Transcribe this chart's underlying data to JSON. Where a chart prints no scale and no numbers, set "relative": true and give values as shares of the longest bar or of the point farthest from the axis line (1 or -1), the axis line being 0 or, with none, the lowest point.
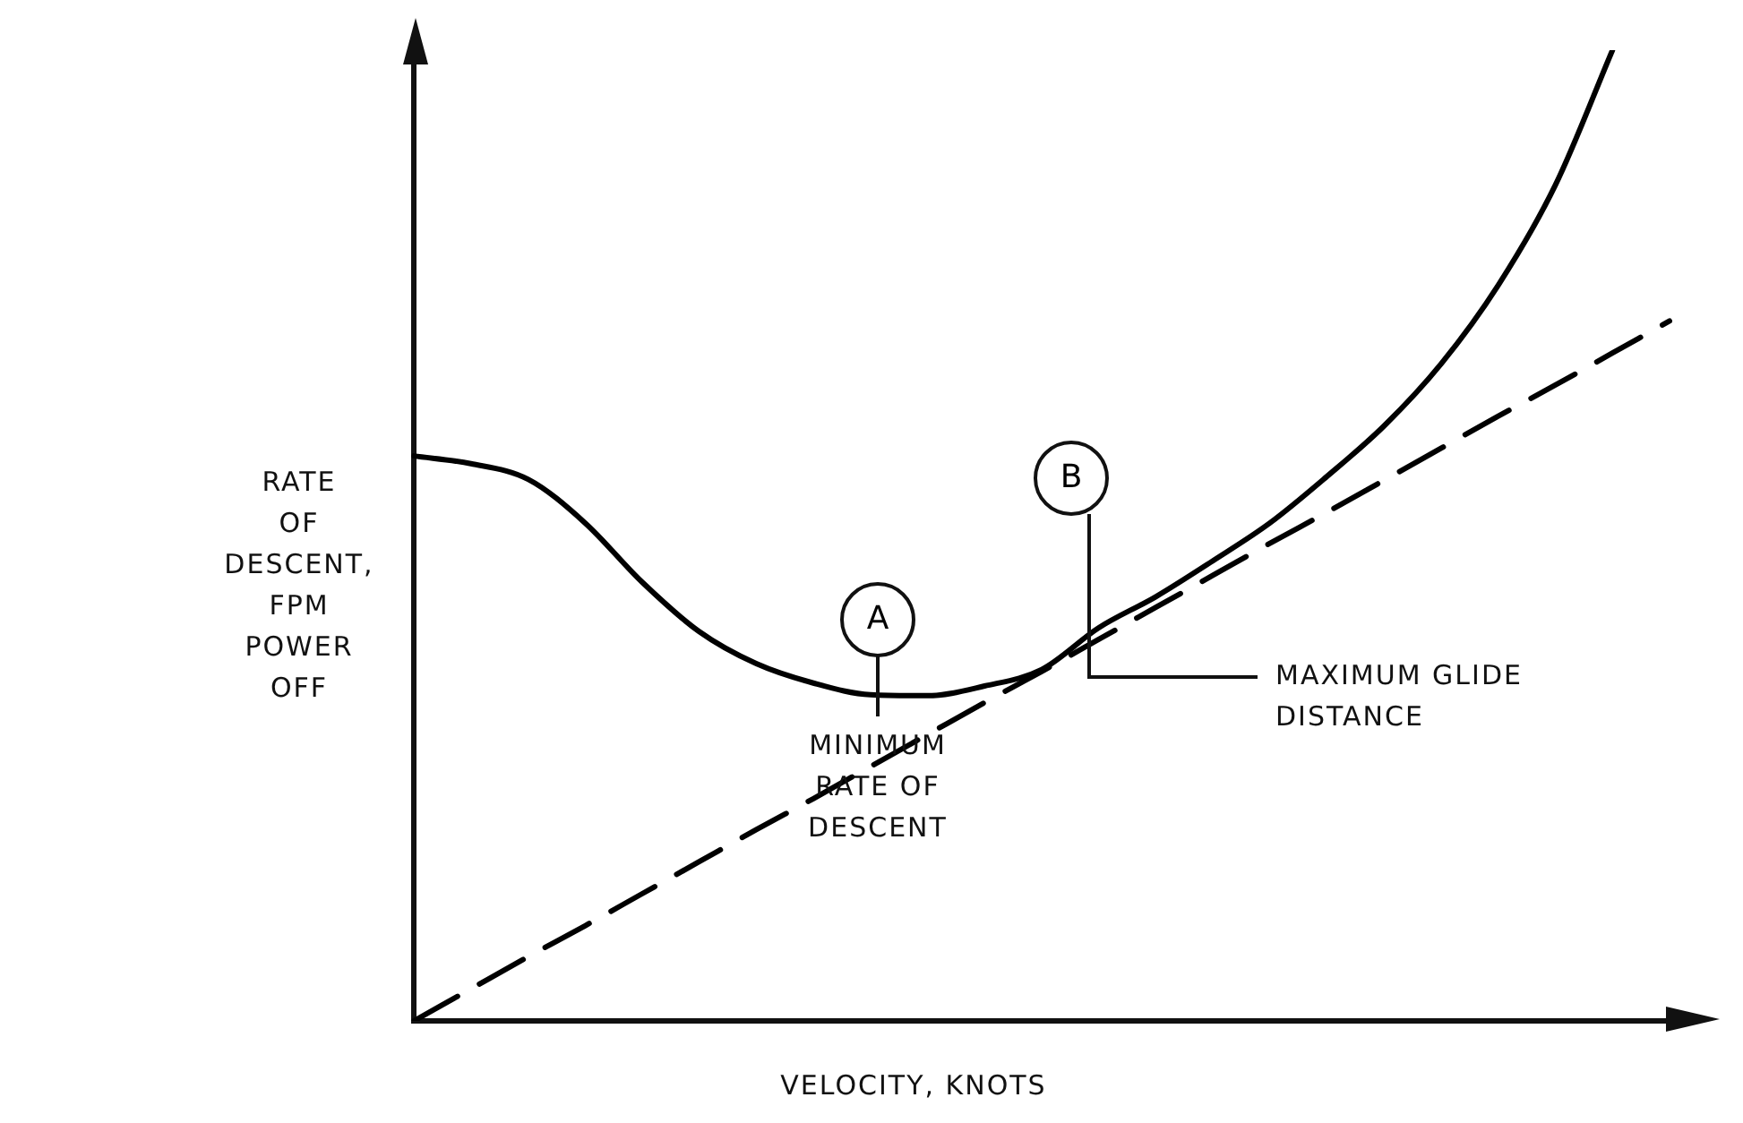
{
  "chart_data": {
    "type": "line",
    "relative": true,
    "xlabel": "VELOCITY, KNOTS",
    "ylabel": "RATE OF DESCENT, FPM POWER OFF",
    "categories": [
      null,
      null,
      null,
      null,
      null,
      null,
      null,
      null,
      null,
      null,
      null,
      null,
      null,
      null,
      null,
      null,
      null,
      null,
      null,
      null,
      null,
      null,
      null
    ],
    "series": [
      {
        "color": "#000000",
        "values": [
          0.582,
          0.574,
          0.558,
          0.513,
          0.452,
          0.401,
          0.368,
          0.348,
          0.336,
          0.335,
          0.345,
          0.362,
          0.405,
          0.437,
          0.474,
          0.513,
          0.561,
          0.613,
          0.677,
          0.758,
          0.861,
          1.0,
          null
        ]
      },
      {
        "color": "#000000",
        "line_style": "dashed",
        "values": [
          0,
          0.033,
          0.066,
          0.098,
          0.131,
          0.164,
          0.197,
          0.229,
          0.262,
          0.295,
          0.328,
          0.36,
          0.393,
          0.426,
          0.459,
          0.492,
          0.524,
          0.557,
          0.59,
          0.623,
          0.655,
          0.688,
          0.721
        ]
      }
    ],
    "annotations": [
      "A",
      "B",
      "MINIMUM RATE OF DESCENT",
      "MAXIMUM GLIDE DISTANCE"
    ],
    "legend": false,
    "grid": false,
    "marker": "none"
  }
}
